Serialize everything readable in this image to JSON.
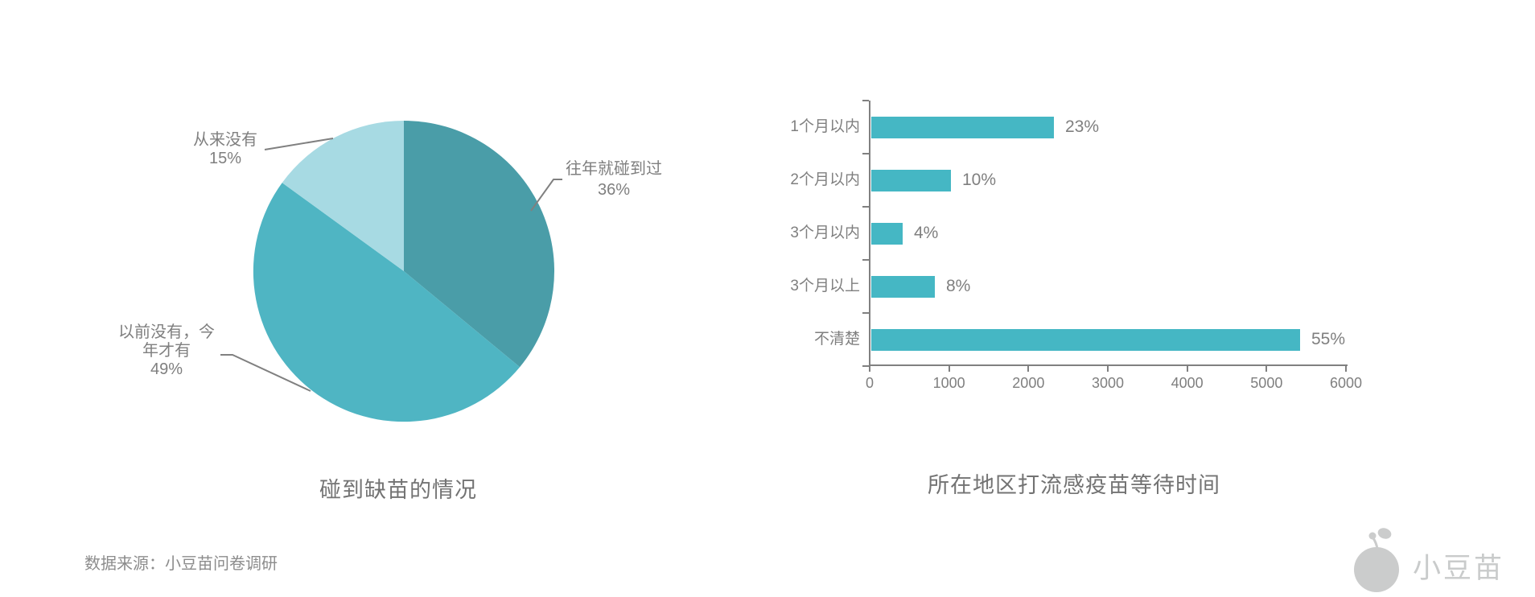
{
  "page": {
    "background": "#ffffff"
  },
  "source_note": "数据来源：小豆苗问卷调研",
  "logo": {
    "name": "小豆苗",
    "color": "#c9cbcb",
    "icon": "sprout-bean-icon"
  },
  "colors": {
    "label_gray": "#7f7f7f",
    "title_gray": "#737373",
    "source_gray": "#8c8c8c",
    "leader_line": "#808080",
    "axis": "#808080"
  },
  "chart_data": [
    {
      "type": "pie",
      "title": "碰到缺苗的情况",
      "start_angle_deg": 0,
      "clockwise": true,
      "slices": [
        {
          "label": "往年就碰到过",
          "pct": "36%",
          "value": 36,
          "color": "#4a9da8"
        },
        {
          "label": "以前没有，今年才有",
          "pct": "49%",
          "value": 49,
          "color": "#4fb5c3"
        },
        {
          "label": "从来没有",
          "pct": "15%",
          "value": 15,
          "color": "#a7dae3"
        }
      ]
    },
    {
      "type": "bar",
      "orientation": "horizontal",
      "title": "所在地区打流感疫苗等待时间",
      "categories": [
        "1个月以内",
        "2个月以内",
        "3个月以内",
        "3个月以上",
        "不清楚"
      ],
      "values": [
        2300,
        1000,
        400,
        800,
        5400
      ],
      "value_labels": [
        "23%",
        "10%",
        "4%",
        "8%",
        "55%"
      ],
      "xlim": [
        0,
        6000
      ],
      "x_ticks": [
        0,
        1000,
        2000,
        3000,
        4000,
        5000,
        6000
      ],
      "bar_color": "#45b7c4",
      "axis_color": "#808080",
      "grid": false,
      "legend": "none"
    }
  ]
}
